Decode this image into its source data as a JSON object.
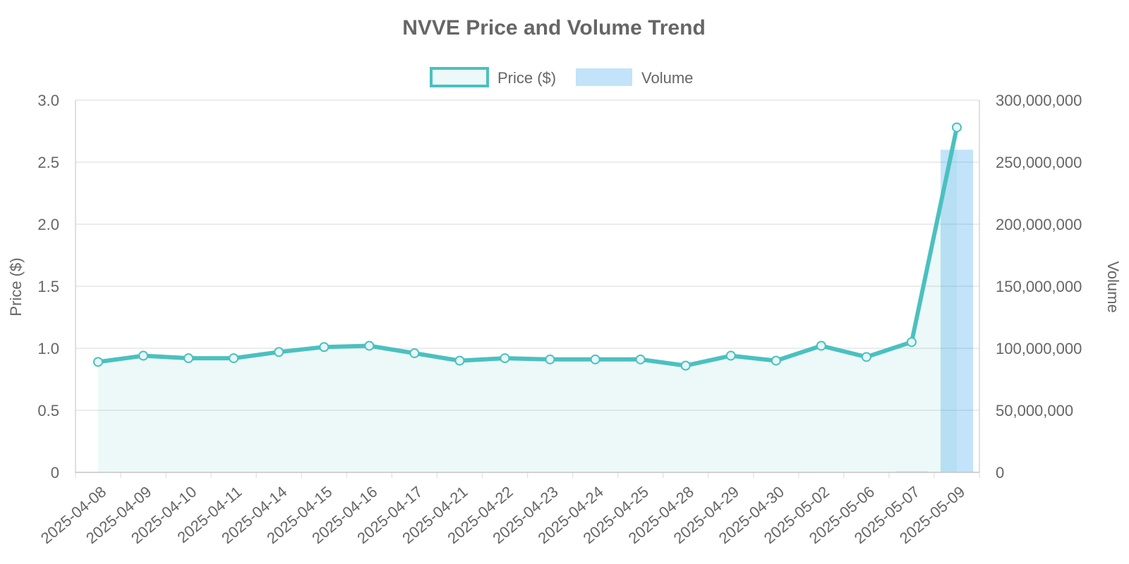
{
  "chart_data": {
    "type": "bar+line",
    "title": "NVVE Price and Volume Trend",
    "categories": [
      "2025-04-08",
      "2025-04-09",
      "2025-04-10",
      "2025-04-11",
      "2025-04-14",
      "2025-04-15",
      "2025-04-16",
      "2025-04-17",
      "2025-04-21",
      "2025-04-22",
      "2025-04-23",
      "2025-04-24",
      "2025-04-25",
      "2025-04-28",
      "2025-04-29",
      "2025-04-30",
      "2025-05-02",
      "2025-05-06",
      "2025-05-07",
      "2025-05-09"
    ],
    "series": [
      {
        "name": "Price ($)",
        "type": "line",
        "axis": "left",
        "values": [
          0.89,
          0.94,
          0.92,
          0.92,
          0.97,
          1.01,
          1.02,
          0.96,
          0.9,
          0.92,
          0.91,
          0.91,
          0.91,
          0.86,
          0.94,
          0.9,
          1.02,
          0.93,
          1.05,
          2.78
        ]
      },
      {
        "name": "Volume",
        "type": "bar",
        "axis": "right",
        "values": [
          150000,
          200000,
          120000,
          100000,
          180000,
          250000,
          220000,
          160000,
          140000,
          130000,
          110000,
          100000,
          90000,
          300000,
          250000,
          200000,
          400000,
          250000,
          800000,
          260000000
        ]
      }
    ],
    "y_left": {
      "label": "Price ($)",
      "ylim": [
        0,
        3
      ],
      "ticks": [
        0,
        0.5,
        1.0,
        1.5,
        2.0,
        2.5,
        3.0
      ],
      "tick_labels": [
        "0",
        "0.5",
        "1.0",
        "1.5",
        "2.0",
        "2.5",
        "3.0"
      ]
    },
    "y_right": {
      "label": "Volume",
      "ylim": [
        0,
        300000000
      ],
      "ticks": [
        0,
        50000000,
        100000000,
        150000000,
        200000000,
        250000000,
        300000000
      ],
      "tick_labels": [
        "0",
        "50,000,000",
        "100,000,000",
        "150,000,000",
        "200,000,000",
        "250,000,000",
        "300,000,000"
      ]
    },
    "legend": {
      "position": "top-center",
      "entries": [
        "Price ($)",
        "Volume"
      ]
    },
    "grid": true,
    "colors": {
      "price_line": "#4bc0c0",
      "price_fill": "rgba(75,192,192,0.10)",
      "volume_bar": "rgba(54,162,235,0.30)",
      "grid": "#e5e5e5",
      "text": "#666666"
    }
  }
}
